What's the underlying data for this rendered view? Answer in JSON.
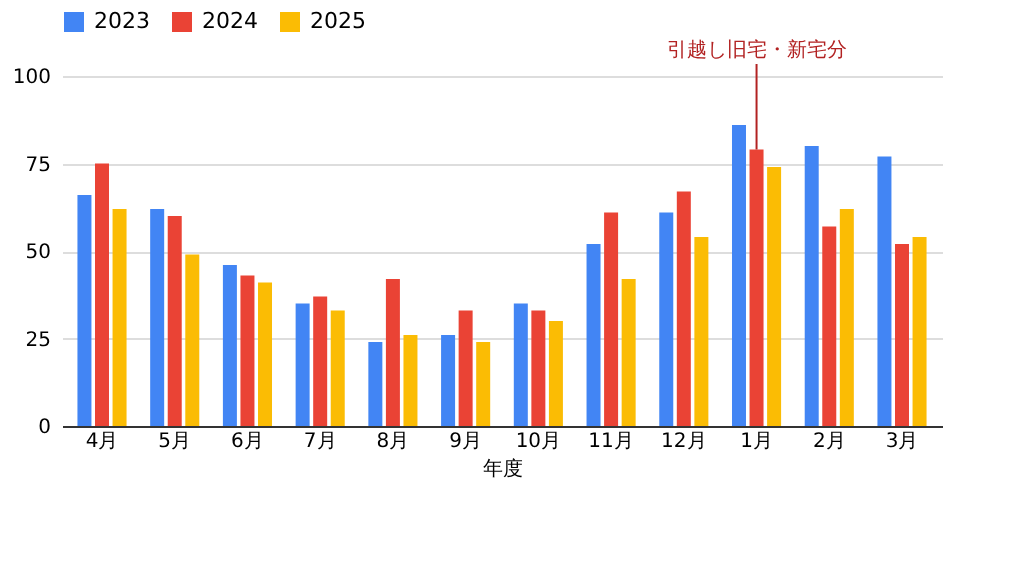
{
  "chart_data": {
    "type": "bar",
    "xlabel": "年度",
    "categories": [
      "4月",
      "5月",
      "6月",
      "7月",
      "8月",
      "9月",
      "10月",
      "11月",
      "12月",
      "1月",
      "2月",
      "3月"
    ],
    "series": [
      {
        "name": "2023",
        "color": "#4285f4",
        "values": [
          66,
          62,
          46,
          35,
          24,
          26,
          35,
          52,
          61,
          86,
          80,
          77
        ]
      },
      {
        "name": "2024",
        "color": "#ea4335",
        "values": [
          75,
          60,
          43,
          37,
          42,
          33,
          33,
          61,
          67,
          79,
          57,
          52
        ]
      },
      {
        "name": "2025",
        "color": "#fbbc04",
        "values": [
          62,
          49,
          41,
          33,
          26,
          24,
          30,
          42,
          54,
          74,
          62,
          54
        ]
      }
    ],
    "ylim": [
      0,
      100
    ],
    "yticks": [
      0,
      25,
      50,
      75,
      100
    ],
    "grid": "y",
    "legend": "top",
    "annotations": [
      {
        "text": "引越し旧宅・新宅分",
        "x": "1月",
        "y": 79
      }
    ]
  }
}
